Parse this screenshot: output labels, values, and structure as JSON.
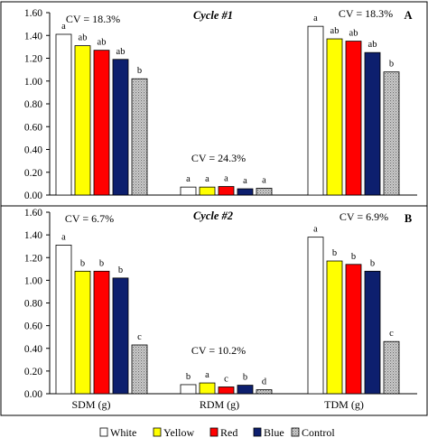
{
  "chart_data": [
    {
      "type": "bar",
      "title": "Cycle #1",
      "panel_label": "A",
      "categories": [
        "SDM (g)",
        "RDM (g)",
        "TDM (g)"
      ],
      "ylim": [
        0,
        1.6
      ],
      "yticks": [
        "0.00",
        "0.20",
        "0.40",
        "0.60",
        "0.80",
        "1.00",
        "1.20",
        "1.40",
        "1.60"
      ],
      "cv": [
        "CV = 18.3%",
        "CV = 24.3%",
        "CV = 18.3%"
      ],
      "series": [
        {
          "name": "White",
          "color": "#ffffff",
          "values": [
            1.41,
            0.07,
            1.48
          ],
          "letters": [
            "a",
            "a",
            "a"
          ]
        },
        {
          "name": "Yellow",
          "color": "#ffff00",
          "values": [
            1.31,
            0.07,
            1.37
          ],
          "letters": [
            "ab",
            "a",
            "ab"
          ]
        },
        {
          "name": "Red",
          "color": "#ff0000",
          "values": [
            1.27,
            0.075,
            1.35
          ],
          "letters": [
            "ab",
            "a",
            "ab"
          ]
        },
        {
          "name": "Blue",
          "color": "#0d1f6e",
          "values": [
            1.19,
            0.055,
            1.25
          ],
          "letters": [
            "ab",
            "a",
            "ab"
          ]
        },
        {
          "name": "Control",
          "color": "#b0b0b0",
          "values": [
            1.02,
            0.06,
            1.08
          ],
          "letters": [
            "b",
            "a",
            "b"
          ]
        }
      ]
    },
    {
      "type": "bar",
      "title": "Cycle #2",
      "panel_label": "B",
      "categories": [
        "SDM (g)",
        "RDM (g)",
        "TDM (g)"
      ],
      "ylim": [
        0,
        1.6
      ],
      "yticks": [
        "0.00",
        "0.20",
        "0.40",
        "0.60",
        "0.80",
        "1.00",
        "1.20",
        "1.40",
        "1.60"
      ],
      "cv": [
        "CV = 6.7%",
        "CV = 10.2%",
        "CV = 6.9%"
      ],
      "series": [
        {
          "name": "White",
          "color": "#ffffff",
          "values": [
            1.31,
            0.08,
            1.38
          ],
          "letters": [
            "a",
            "b",
            "a"
          ]
        },
        {
          "name": "Yellow",
          "color": "#ffff00",
          "values": [
            1.08,
            0.095,
            1.17
          ],
          "letters": [
            "b",
            "a",
            "b"
          ]
        },
        {
          "name": "Red",
          "color": "#ff0000",
          "values": [
            1.08,
            0.06,
            1.14
          ],
          "letters": [
            "b",
            "c",
            "b"
          ]
        },
        {
          "name": "Blue",
          "color": "#0d1f6e",
          "values": [
            1.02,
            0.075,
            1.08
          ],
          "letters": [
            "b",
            "b",
            "b"
          ]
        },
        {
          "name": "Control",
          "color": "#b0b0b0",
          "values": [
            0.43,
            0.035,
            0.46
          ],
          "letters": [
            "c",
            "d",
            "c"
          ]
        }
      ]
    }
  ],
  "legend": [
    "White",
    "Yellow",
    "Red",
    "Blue",
    "Control"
  ]
}
